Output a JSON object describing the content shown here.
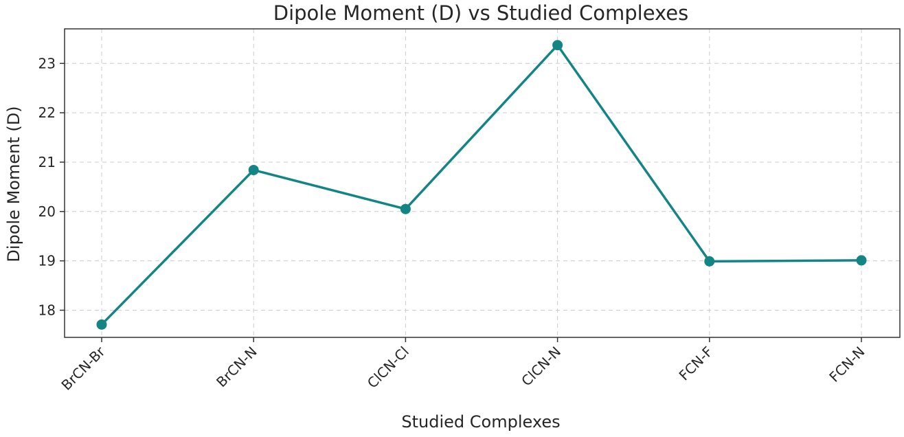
{
  "chart_data": {
    "type": "line",
    "title": "Dipole Moment (D) vs Studied Complexes",
    "xlabel": "Studied Complexes",
    "ylabel": "Dipole Moment (D)",
    "categories": [
      "BrCN-Br",
      "BrCN-N",
      "ClCN-Cl",
      "ClCN-N",
      "FCN-F",
      "FCN-N"
    ],
    "series": [
      {
        "values": [
          17.71,
          20.84,
          20.05,
          23.37,
          18.99,
          19.01
        ],
        "color": "#138585",
        "marker": "circle"
      }
    ],
    "ylim": [
      17.45,
      23.7
    ],
    "yticks": [
      18,
      19,
      20,
      21,
      22,
      23
    ],
    "grid": true,
    "legend": "none"
  }
}
